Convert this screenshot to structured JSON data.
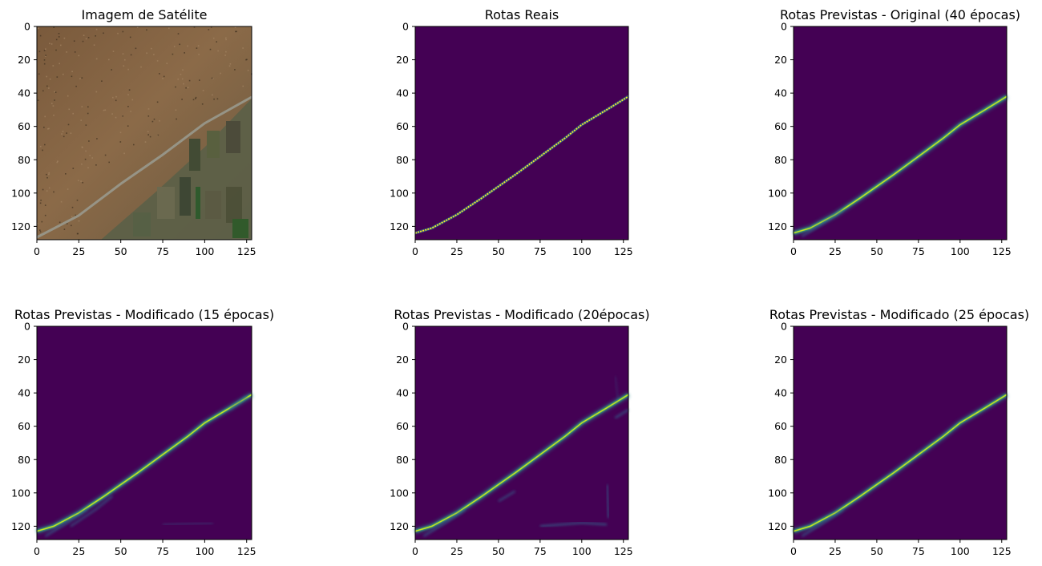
{
  "figure": {
    "colormap": "viridis",
    "background": "#440154",
    "route_color": "#fde725"
  },
  "chart_data": [
    {
      "type": "heatmap",
      "title": "Imagem de Satélite",
      "content": "satellite-image",
      "xlim": [
        0,
        128
      ],
      "ylim": [
        128,
        0
      ],
      "xticks": [
        "0",
        "25",
        "50",
        "75",
        "100",
        "125"
      ],
      "yticks": [
        "0",
        "20",
        "40",
        "60",
        "80",
        "100",
        "120"
      ],
      "road_path": [
        [
          0,
          126
        ],
        [
          25,
          113
        ],
        [
          50,
          94
        ],
        [
          75,
          77
        ],
        [
          100,
          58
        ],
        [
          128,
          42
        ]
      ]
    },
    {
      "type": "heatmap",
      "title": "Rotas Reais",
      "content": "ground-truth",
      "xlim": [
        0,
        128
      ],
      "ylim": [
        128,
        0
      ],
      "xticks": [
        "0",
        "25",
        "50",
        "75",
        "100",
        "125"
      ],
      "yticks": [
        "0",
        "20",
        "40",
        "60",
        "80",
        "100",
        "120"
      ],
      "route_path": [
        [
          0,
          124
        ],
        [
          10,
          121
        ],
        [
          25,
          113
        ],
        [
          40,
          103
        ],
        [
          50,
          96
        ],
        [
          60,
          89
        ],
        [
          75,
          78
        ],
        [
          90,
          67
        ],
        [
          100,
          59
        ],
        [
          115,
          50
        ],
        [
          128,
          42
        ]
      ]
    },
    {
      "type": "heatmap",
      "title": "Rotas Previstas - Original (40 épocas)",
      "content": "prediction",
      "xlim": [
        0,
        128
      ],
      "ylim": [
        128,
        0
      ],
      "xticks": [
        "0",
        "25",
        "50",
        "75",
        "100",
        "125"
      ],
      "yticks": [
        "0",
        "20",
        "40",
        "60",
        "80",
        "100",
        "120"
      ],
      "route_path": [
        [
          0,
          124
        ],
        [
          10,
          121
        ],
        [
          25,
          113
        ],
        [
          40,
          103
        ],
        [
          50,
          96
        ],
        [
          60,
          89
        ],
        [
          75,
          78
        ],
        [
          90,
          67
        ],
        [
          100,
          59
        ],
        [
          115,
          50
        ],
        [
          128,
          42
        ]
      ]
    },
    {
      "type": "heatmap",
      "title": "Rotas Previstas - Modificado (15 épocas)",
      "content": "prediction",
      "xlim": [
        0,
        128
      ],
      "ylim": [
        128,
        0
      ],
      "xticks": [
        "0",
        "25",
        "50",
        "75",
        "100",
        "125"
      ],
      "yticks": [
        "0",
        "20",
        "40",
        "60",
        "80",
        "100",
        "120"
      ],
      "route_path": [
        [
          0,
          123
        ],
        [
          10,
          120
        ],
        [
          25,
          112
        ],
        [
          40,
          102
        ],
        [
          50,
          95
        ],
        [
          60,
          88
        ],
        [
          75,
          77
        ],
        [
          90,
          66
        ],
        [
          100,
          58
        ],
        [
          115,
          49
        ],
        [
          128,
          41
        ]
      ]
    },
    {
      "type": "heatmap",
      "title": "Rotas Previstas - Modificado (20épocas)",
      "content": "prediction",
      "xlim": [
        0,
        128
      ],
      "ylim": [
        128,
        0
      ],
      "xticks": [
        "0",
        "25",
        "50",
        "75",
        "100",
        "125"
      ],
      "yticks": [
        "0",
        "20",
        "40",
        "60",
        "80",
        "100",
        "120"
      ],
      "route_path": [
        [
          0,
          123
        ],
        [
          10,
          120
        ],
        [
          25,
          112
        ],
        [
          40,
          102
        ],
        [
          50,
          95
        ],
        [
          60,
          88
        ],
        [
          75,
          77
        ],
        [
          90,
          66
        ],
        [
          100,
          58
        ],
        [
          115,
          49
        ],
        [
          128,
          41
        ]
      ]
    },
    {
      "type": "heatmap",
      "title": "Rotas Previstas - Modificado (25 épocas)",
      "content": "prediction",
      "xlim": [
        0,
        128
      ],
      "ylim": [
        128,
        0
      ],
      "xticks": [
        "0",
        "25",
        "50",
        "75",
        "100",
        "125"
      ],
      "yticks": [
        "0",
        "20",
        "40",
        "60",
        "80",
        "100",
        "120"
      ],
      "route_path": [
        [
          0,
          123
        ],
        [
          10,
          120
        ],
        [
          25,
          112
        ],
        [
          40,
          102
        ],
        [
          50,
          95
        ],
        [
          60,
          88
        ],
        [
          75,
          77
        ],
        [
          90,
          66
        ],
        [
          100,
          58
        ],
        [
          115,
          49
        ],
        [
          128,
          41
        ]
      ]
    }
  ]
}
